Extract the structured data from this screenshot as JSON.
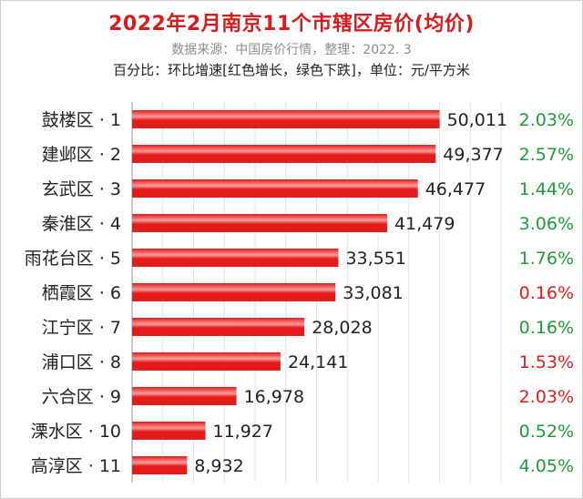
{
  "title": "2022年2月南京11个市辖区房价(均价)",
  "subtitle": "数据来源：中国房价行情，整理：2022. 3",
  "note": "百分比：环比增速[红色增长，绿色下跌]，单位：元/平方米",
  "colors": {
    "bar": "#e31b1b",
    "bar_highlight": "#ff9a9a",
    "increase": "#e31b1b",
    "decrease": "#1e9b3a",
    "grid": "#e4e4e4"
  },
  "chart_data": {
    "type": "bar",
    "orientation": "horizontal",
    "title": "2022年2月南京11个市辖区房价(均价)",
    "categories": [
      "鼓楼区 · 1",
      "建邺区 · 2",
      "玄武区 · 3",
      "秦淮区 · 4",
      "雨花台区 · 5",
      "栖霞区 · 6",
      "江宁区 · 7",
      "浦口区 · 8",
      "六合区 · 9",
      "溧水区 · 10",
      "高淳区 · 11"
    ],
    "values": [
      50011,
      49377,
      46477,
      41479,
      33551,
      33081,
      28028,
      24141,
      16978,
      11927,
      8932
    ],
    "value_labels": [
      "50,011",
      "49,377",
      "46,477",
      "41,479",
      "33,551",
      "33,081",
      "28,028",
      "24,141",
      "16,978",
      "11,927",
      "8,932"
    ],
    "growth_labels": [
      "2.03%",
      "2.57%",
      "1.44%",
      "3.06%",
      "1.76%",
      "0.16%",
      "0.16%",
      "1.53%",
      "2.03%",
      "0.52%",
      "4.05%"
    ],
    "growth_direction": [
      "down",
      "down",
      "down",
      "down",
      "down",
      "up",
      "down",
      "up",
      "up",
      "down",
      "down"
    ],
    "xlim": [
      0,
      60000
    ],
    "grid": true,
    "legend": "none"
  }
}
